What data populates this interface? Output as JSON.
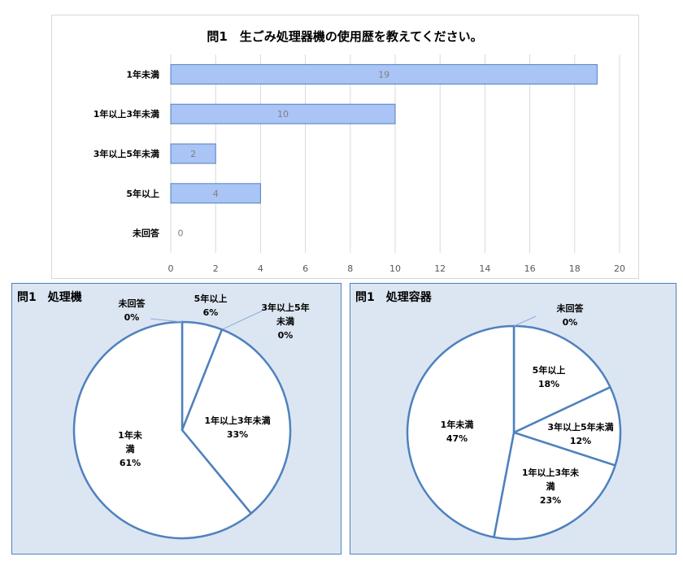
{
  "chart_data": [
    {
      "type": "bar",
      "orientation": "horizontal",
      "title": "問1　生ごみ処理器機の使用歴を教えてください。",
      "categories": [
        "1年未満",
        "1年以上3年未満",
        "3年以上5年未満",
        "5年以上",
        "未回答"
      ],
      "values": [
        19,
        10,
        2,
        4,
        0
      ],
      "xlim": [
        0,
        20
      ],
      "xticks": [
        "0",
        "2",
        "4",
        "6",
        "8",
        "10",
        "12",
        "14",
        "16",
        "18",
        "20"
      ],
      "grid": true,
      "bar_color": "#a9c4f5"
    },
    {
      "type": "pie",
      "title": "問1　処理機",
      "slices": [
        {
          "label": "5年以上",
          "label_lines": [
            "5年以上"
          ],
          "percent_text": "6%",
          "value": 6
        },
        {
          "label": "3年以上5年未満",
          "label_lines": [
            "3年以上5年",
            "未満"
          ],
          "percent_text": "0%",
          "value": 0
        },
        {
          "label": "1年以上3年未満",
          "label_lines": [
            "1年以上3年未満"
          ],
          "percent_text": "33%",
          "value": 33
        },
        {
          "label": "1年未満",
          "label_lines": [
            "1年未",
            "満"
          ],
          "percent_text": "61%",
          "value": 61
        },
        {
          "label": "未回答",
          "label_lines": [
            "未回答"
          ],
          "percent_text": "0%",
          "value": 0
        }
      ]
    },
    {
      "type": "pie",
      "title": "問1　処理容器",
      "slices": [
        {
          "label": "5年以上",
          "label_lines": [
            "5年以上"
          ],
          "percent_text": "18%",
          "value": 18
        },
        {
          "label": "3年以上5年未満",
          "label_lines": [
            "3年以上5年未満"
          ],
          "percent_text": "12%",
          "value": 12
        },
        {
          "label": "1年以上3年未満",
          "label_lines": [
            "1年以上3年未",
            "満"
          ],
          "percent_text": "23%",
          "value": 23
        },
        {
          "label": "1年未満",
          "label_lines": [
            "1年未満"
          ],
          "percent_text": "47%",
          "value": 47
        },
        {
          "label": "未回答",
          "label_lines": [
            "未回答"
          ],
          "percent_text": "0%",
          "value": 0
        }
      ]
    }
  ],
  "colors": {
    "bar_fill": "#a9c4f5",
    "bar_stroke": "#4f81bd",
    "pie_stroke": "#4f81bd",
    "panel_bg": "#dce6f2",
    "gridline": "#d9d9d9"
  }
}
